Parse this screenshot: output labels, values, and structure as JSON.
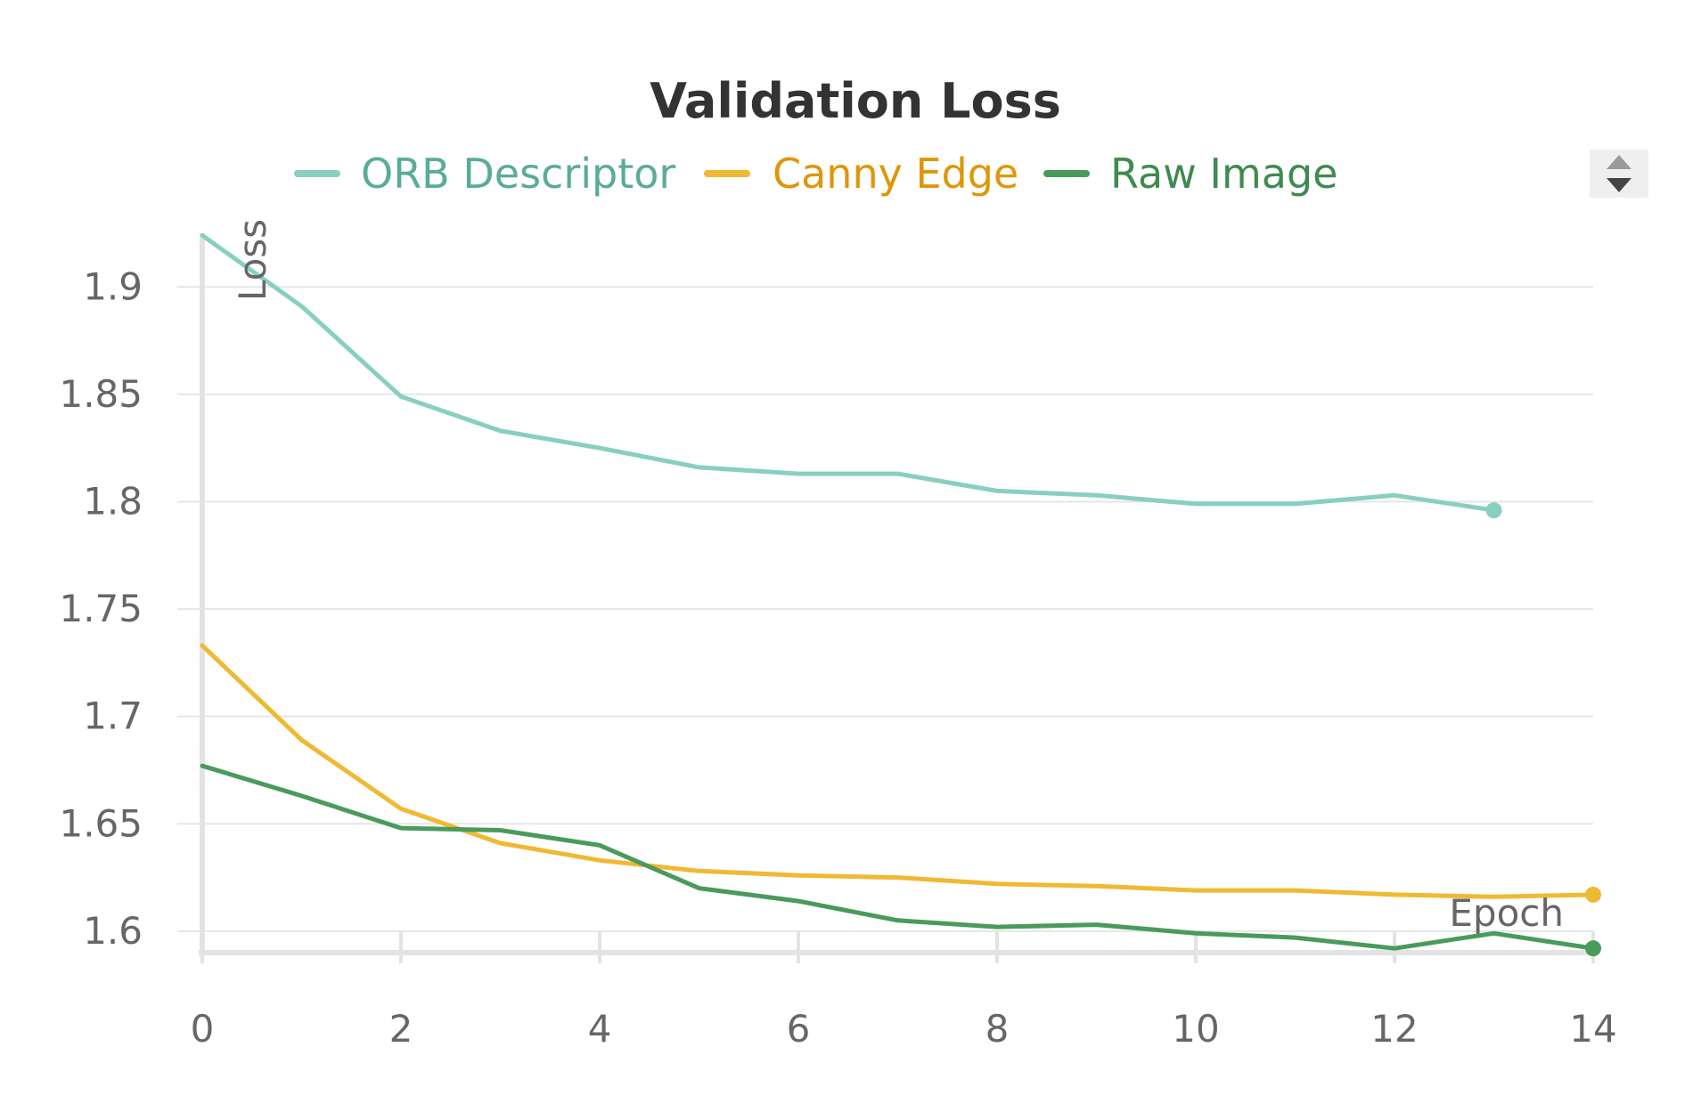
{
  "chart_data": {
    "type": "line",
    "title": "Validation Loss",
    "xlabel": "Epoch",
    "ylabel": "Loss",
    "xlim": [
      0,
      14
    ],
    "ylim": [
      1.59,
      1.925
    ],
    "x_ticks": [
      "0",
      "2",
      "4",
      "6",
      "8",
      "10",
      "12",
      "14"
    ],
    "y_ticks": [
      "1.6",
      "1.65",
      "1.7",
      "1.75",
      "1.8",
      "1.85",
      "1.9"
    ],
    "grid": true,
    "legend_position": "top",
    "series": [
      {
        "name": "ORB Descriptor",
        "color": "#88cfbf",
        "text_color": "#5aab98",
        "x": [
          0,
          1,
          2,
          3,
          4,
          5,
          6,
          7,
          8,
          9,
          10,
          11,
          12,
          13
        ],
        "values": [
          1.924,
          1.891,
          1.849,
          1.833,
          1.825,
          1.816,
          1.813,
          1.813,
          1.805,
          1.803,
          1.799,
          1.799,
          1.803,
          1.796
        ]
      },
      {
        "name": "Canny Edge",
        "color": "#f0b933",
        "text_color": "#e0960a",
        "x": [
          0,
          1,
          2,
          3,
          4,
          5,
          6,
          7,
          8,
          9,
          10,
          11,
          12,
          13,
          14
        ],
        "values": [
          1.733,
          1.689,
          1.657,
          1.641,
          1.633,
          1.628,
          1.626,
          1.625,
          1.622,
          1.621,
          1.619,
          1.619,
          1.617,
          1.616,
          1.617
        ]
      },
      {
        "name": "Raw Image",
        "color": "#4a9a5c",
        "text_color": "#3f8a50",
        "x": [
          0,
          1,
          2,
          3,
          4,
          5,
          6,
          7,
          8,
          9,
          10,
          11,
          12,
          13,
          14
        ],
        "values": [
          1.677,
          1.663,
          1.648,
          1.647,
          1.64,
          1.62,
          1.614,
          1.605,
          1.602,
          1.603,
          1.599,
          1.597,
          1.592,
          1.599,
          1.592
        ]
      }
    ]
  },
  "controls": {
    "legend_scroll_icon": "up-down-arrow-icon"
  }
}
